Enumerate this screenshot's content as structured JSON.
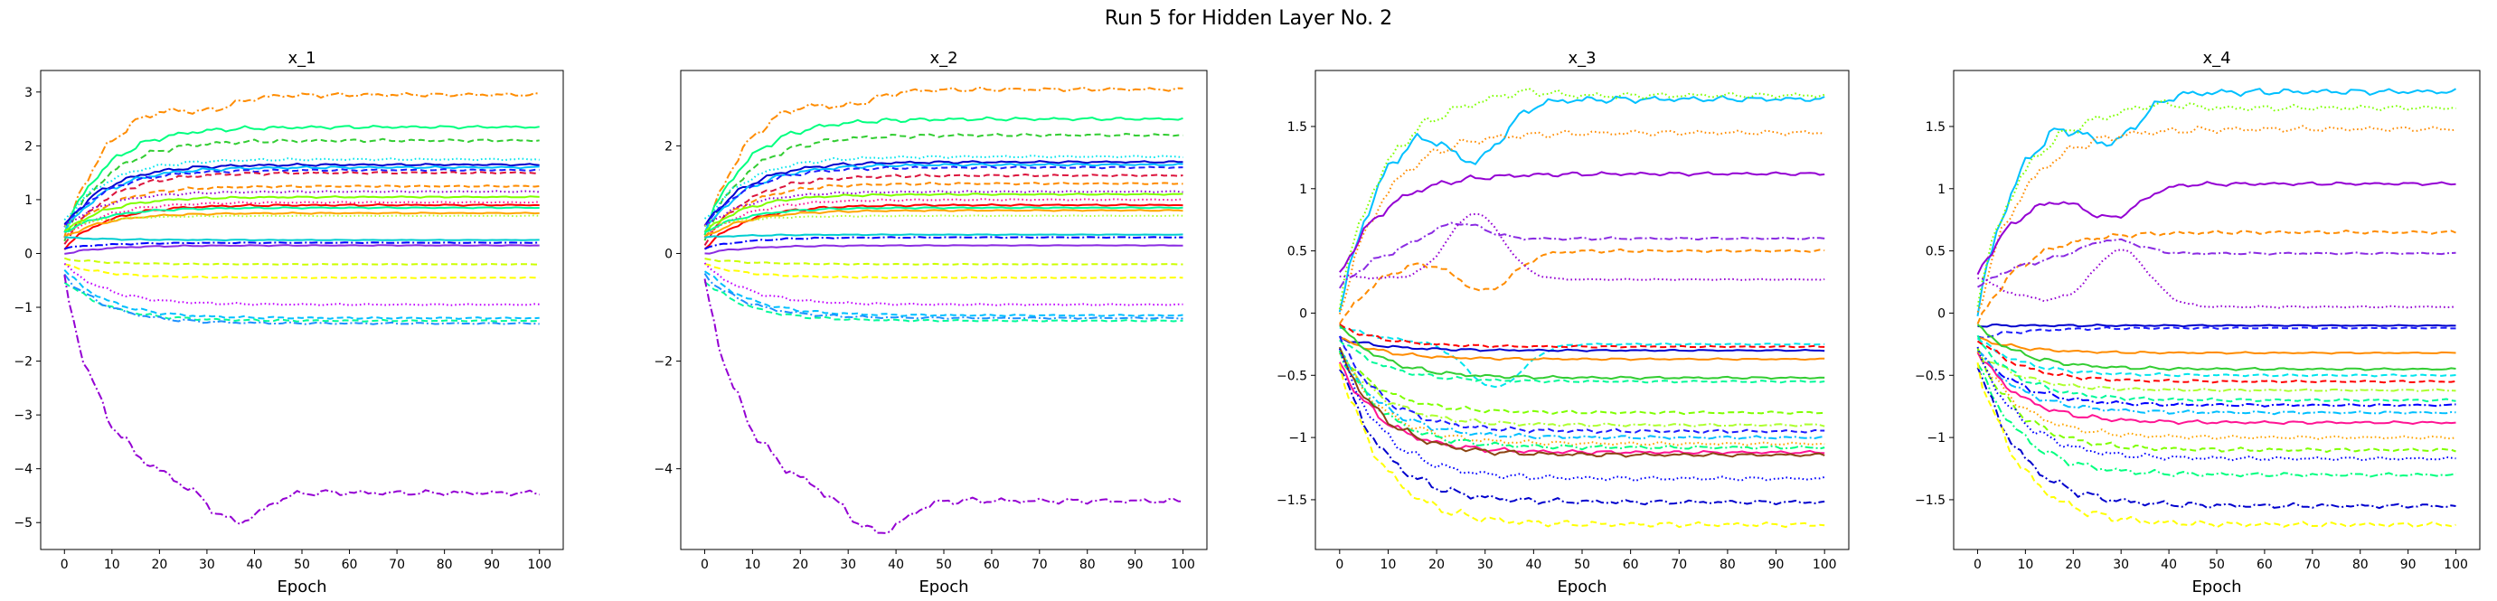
{
  "figure": {
    "title": "Run 5 for Hidden Layer No. 2"
  },
  "chart_data": [
    {
      "type": "line",
      "title": "x_1",
      "xlabel": "Epoch",
      "ylabel": "",
      "xlim": [
        -5,
        105
      ],
      "ylim": [
        -5.5,
        3.4
      ],
      "xticks": [
        0,
        10,
        20,
        30,
        40,
        50,
        60,
        70,
        80,
        90,
        100
      ],
      "yticks": [
        -5,
        -4,
        -3,
        -2,
        -1,
        0,
        1,
        2,
        3
      ],
      "grid": false,
      "legend": "none",
      "series": [
        {
          "color": "#ff8c00",
          "dash": "dashdot",
          "start": 0.3,
          "final": 2.95,
          "bump": 2.75,
          "peak": 30
        },
        {
          "color": "#00ff7f",
          "dash": "solid",
          "start": 0.4,
          "final": 2.35
        },
        {
          "color": "#32cd32",
          "dash": "dashed",
          "start": 0.3,
          "final": 2.1
        },
        {
          "color": "#00e5ee",
          "dash": "dotted",
          "start": 0.6,
          "final": 1.75
        },
        {
          "color": "#0000cd",
          "dash": "solid",
          "start": 0.5,
          "final": 1.65
        },
        {
          "color": "#00bfff",
          "dash": "solid",
          "start": 0.4,
          "final": 1.6
        },
        {
          "color": "#1e1eff",
          "dash": "dashed",
          "start": 0.5,
          "final": 1.55
        },
        {
          "color": "#dc143c",
          "dash": "dashed",
          "start": 0.2,
          "final": 1.5
        },
        {
          "color": "#ff8c00",
          "dash": "dashed",
          "start": 0.3,
          "final": 1.25
        },
        {
          "color": "#9400d3",
          "dash": "dotted",
          "start": 0.5,
          "final": 1.15
        },
        {
          "color": "#7fff00",
          "dash": "solid",
          "start": 0.4,
          "final": 1.05
        },
        {
          "color": "#ff1493",
          "dash": "dotted",
          "start": 0.3,
          "final": 0.95
        },
        {
          "color": "#ff0000",
          "dash": "solid",
          "start": 0.1,
          "final": 0.9
        },
        {
          "color": "#00fa9a",
          "dash": "solid",
          "start": 0.4,
          "final": 0.85
        },
        {
          "color": "#ffa500",
          "dash": "solid",
          "start": 0.3,
          "final": 0.75
        },
        {
          "color": "#adff2f",
          "dash": "dotted",
          "start": 0.5,
          "final": 0.7
        },
        {
          "color": "#00ced1",
          "dash": "solid",
          "start": 0.3,
          "final": 0.25
        },
        {
          "color": "#0000ff",
          "dash": "dashdot",
          "start": 0.1,
          "final": 0.2
        },
        {
          "color": "#8a2be2",
          "dash": "solid",
          "start": 0.0,
          "final": 0.15
        },
        {
          "color": "#ccff00",
          "dash": "dashed",
          "start": -0.1,
          "final": -0.2
        },
        {
          "color": "#ffff00",
          "dash": "dashed",
          "start": -0.2,
          "final": -0.45
        },
        {
          "color": "#c000ff",
          "dash": "dotted",
          "start": -0.2,
          "final": -0.95
        },
        {
          "color": "#00bfff",
          "dash": "dashed",
          "start": -0.3,
          "final": -1.2
        },
        {
          "color": "#00fa9a",
          "dash": "dashed",
          "start": -0.5,
          "final": -1.25
        },
        {
          "color": "#1e90ff",
          "dash": "dashdot",
          "start": -0.4,
          "final": -1.3
        },
        {
          "color": "#9400d3",
          "dash": "dashdot",
          "start": -0.5,
          "final": -4.45,
          "bump": -5.05,
          "peak": 36
        }
      ]
    },
    {
      "type": "line",
      "title": "x_2",
      "xlabel": "Epoch",
      "ylabel": "",
      "xlim": [
        -5,
        105
      ],
      "ylim": [
        -5.5,
        3.4
      ],
      "xticks": [
        0,
        10,
        20,
        30,
        40,
        50,
        60,
        70,
        80,
        90,
        100
      ],
      "yticks": [
        -4,
        -2,
        0,
        2
      ],
      "grid": false,
      "legend": "none",
      "series": [
        {
          "color": "#ff8c00",
          "dash": "dashdot",
          "start": 0.3,
          "final": 3.05,
          "bump": 2.85,
          "peak": 30
        },
        {
          "color": "#00ff7f",
          "dash": "solid",
          "start": 0.4,
          "final": 2.5
        },
        {
          "color": "#32cd32",
          "dash": "dashed",
          "start": 0.3,
          "final": 2.2
        },
        {
          "color": "#00e5ee",
          "dash": "dotted",
          "start": 0.6,
          "final": 1.8
        },
        {
          "color": "#0000cd",
          "dash": "solid",
          "start": 0.5,
          "final": 1.7
        },
        {
          "color": "#00bfff",
          "dash": "solid",
          "start": 0.4,
          "final": 1.65
        },
        {
          "color": "#1e1eff",
          "dash": "dashed",
          "start": 0.5,
          "final": 1.6
        },
        {
          "color": "#dc143c",
          "dash": "dashed",
          "start": 0.2,
          "final": 1.45
        },
        {
          "color": "#ff8c00",
          "dash": "dashed",
          "start": 0.3,
          "final": 1.3
        },
        {
          "color": "#9400d3",
          "dash": "dotted",
          "start": 0.5,
          "final": 1.15
        },
        {
          "color": "#7fff00",
          "dash": "solid",
          "start": 0.4,
          "final": 1.1
        },
        {
          "color": "#ff1493",
          "dash": "dotted",
          "start": 0.3,
          "final": 1.0
        },
        {
          "color": "#ff0000",
          "dash": "solid",
          "start": 0.1,
          "final": 0.9
        },
        {
          "color": "#00fa9a",
          "dash": "solid",
          "start": 0.4,
          "final": 0.85
        },
        {
          "color": "#ffa500",
          "dash": "solid",
          "start": 0.3,
          "final": 0.8
        },
        {
          "color": "#adff2f",
          "dash": "dotted",
          "start": 0.5,
          "final": 0.7
        },
        {
          "color": "#00ced1",
          "dash": "solid",
          "start": 0.3,
          "final": 0.35
        },
        {
          "color": "#0000ff",
          "dash": "dashdot",
          "start": 0.1,
          "final": 0.3
        },
        {
          "color": "#8a2be2",
          "dash": "solid",
          "start": 0.0,
          "final": 0.15
        },
        {
          "color": "#ccff00",
          "dash": "dashed",
          "start": -0.1,
          "final": -0.2
        },
        {
          "color": "#ffff00",
          "dash": "dashed",
          "start": -0.2,
          "final": -0.45
        },
        {
          "color": "#c000ff",
          "dash": "dotted",
          "start": -0.2,
          "final": -0.95
        },
        {
          "color": "#00bfff",
          "dash": "dashed",
          "start": -0.3,
          "final": -1.15
        },
        {
          "color": "#00fa9a",
          "dash": "dashed",
          "start": -0.5,
          "final": -1.25
        },
        {
          "color": "#1e90ff",
          "dash": "dashdot",
          "start": -0.4,
          "final": -1.2
        },
        {
          "color": "#9400d3",
          "dash": "dashdot",
          "start": -0.5,
          "final": -4.6,
          "bump": -5.25,
          "peak": 36
        }
      ]
    },
    {
      "type": "line",
      "title": "x_3",
      "xlabel": "Epoch",
      "ylabel": "",
      "xlim": [
        -5,
        105
      ],
      "ylim": [
        -1.9,
        1.95
      ],
      "xticks": [
        0,
        10,
        20,
        30,
        40,
        50,
        60,
        70,
        80,
        90,
        100
      ],
      "yticks": [
        -1.5,
        -1.0,
        -0.5,
        0.0,
        0.5,
        1.0,
        1.5
      ],
      "grid": false,
      "legend": "none",
      "series": [
        {
          "color": "#00c0ff",
          "dash": "solid",
          "start": 0.0,
          "final": 1.72,
          "bump": 1.3,
          "peak": 28
        },
        {
          "color": "#7fff00",
          "dash": "dotted",
          "start": 0.1,
          "final": 1.75,
          "bump": 1.8,
          "peak": 38
        },
        {
          "color": "#ff8c00",
          "dash": "dotted",
          "start": 0.0,
          "final": 1.45
        },
        {
          "color": "#9400d3",
          "dash": "solid",
          "start": 0.3,
          "final": 1.12
        },
        {
          "color": "#8a2be2",
          "dash": "dashdot",
          "start": 0.2,
          "final": 0.6,
          "bump": 0.75,
          "peak": 24
        },
        {
          "color": "#ff8c00",
          "dash": "dashed",
          "start": -0.1,
          "final": 0.5,
          "bump": 0.2,
          "peak": 30
        },
        {
          "color": "#9400d3",
          "dash": "dotted",
          "start": 0.3,
          "final": 0.27,
          "bump": 0.8,
          "peak": 28
        },
        {
          "color": "#00e5ee",
          "dash": "dashed",
          "start": -0.1,
          "final": -0.25,
          "bump": -0.6,
          "peak": 32
        },
        {
          "color": "#0000cd",
          "dash": "solid",
          "start": -0.2,
          "final": -0.3
        },
        {
          "color": "#ff0000",
          "dash": "dashed",
          "start": -0.1,
          "final": -0.27
        },
        {
          "color": "#ff8c00",
          "dash": "solid",
          "start": -0.2,
          "final": -0.37
        },
        {
          "color": "#32cd32",
          "dash": "solid",
          "start": -0.1,
          "final": -0.52
        },
        {
          "color": "#00fa9a",
          "dash": "dashed",
          "start": -0.2,
          "final": -0.55
        },
        {
          "color": "#7fff00",
          "dash": "dashed",
          "start": -0.3,
          "final": -0.8
        },
        {
          "color": "#adff2f",
          "dash": "dashdot",
          "start": -0.3,
          "final": -0.9
        },
        {
          "color": "#1e1eff",
          "dash": "dashed",
          "start": -0.2,
          "final": -0.95
        },
        {
          "color": "#00bfff",
          "dash": "dashdot",
          "start": -0.3,
          "final": -1.0
        },
        {
          "color": "#ffa500",
          "dash": "dotted",
          "start": -0.3,
          "final": -1.05
        },
        {
          "color": "#00ff7f",
          "dash": "dashdot",
          "start": -0.3,
          "final": -1.08
        },
        {
          "color": "#ff1493",
          "dash": "solid",
          "start": -0.4,
          "final": -1.12
        },
        {
          "color": "#8b4513",
          "dash": "solid",
          "start": -0.3,
          "final": -1.14
        },
        {
          "color": "#0000ff",
          "dash": "dotted",
          "start": -0.3,
          "final": -1.33
        },
        {
          "color": "#0000cd",
          "dash": "dashdot",
          "start": -0.4,
          "final": -1.52
        },
        {
          "color": "#ffff00",
          "dash": "dashed",
          "start": -0.4,
          "final": -1.7
        }
      ]
    },
    {
      "type": "line",
      "title": "x_4",
      "xlabel": "Epoch",
      "ylabel": "",
      "xlim": [
        -5,
        105
      ],
      "ylim": [
        -1.9,
        1.95
      ],
      "xticks": [
        0,
        10,
        20,
        30,
        40,
        50,
        60,
        70,
        80,
        90,
        100
      ],
      "yticks": [
        -1.5,
        -1.0,
        -0.5,
        0.0,
        0.5,
        1.0,
        1.5
      ],
      "grid": false,
      "legend": "none",
      "series": [
        {
          "color": "#00c0ff",
          "dash": "solid",
          "start": 0.0,
          "final": 1.78,
          "bump": 1.45,
          "peak": 28
        },
        {
          "color": "#7fff00",
          "dash": "dotted",
          "start": 0.1,
          "final": 1.65,
          "bump": 1.7,
          "peak": 38
        },
        {
          "color": "#ff8c00",
          "dash": "dotted",
          "start": 0.0,
          "final": 1.48
        },
        {
          "color": "#9400d3",
          "dash": "solid",
          "start": 0.3,
          "final": 1.04,
          "bump": 0.8,
          "peak": 28
        },
        {
          "color": "#ff8c00",
          "dash": "dashed",
          "start": -0.1,
          "final": 0.65
        },
        {
          "color": "#8a2be2",
          "dash": "dashdot",
          "start": 0.2,
          "final": 0.48,
          "bump": 0.6,
          "peak": 28
        },
        {
          "color": "#9400d3",
          "dash": "dotted",
          "start": 0.3,
          "final": 0.05,
          "bump": 0.5,
          "peak": 30
        },
        {
          "color": "#0000cd",
          "dash": "solid",
          "start": -0.1,
          "final": -0.1
        },
        {
          "color": "#1e1eff",
          "dash": "dashed",
          "start": -0.2,
          "final": -0.12
        },
        {
          "color": "#ff8c00",
          "dash": "solid",
          "start": -0.2,
          "final": -0.32
        },
        {
          "color": "#32cd32",
          "dash": "solid",
          "start": -0.1,
          "final": -0.45
        },
        {
          "color": "#00e5ee",
          "dash": "dashed",
          "start": -0.2,
          "final": -0.5
        },
        {
          "color": "#ff0000",
          "dash": "dashed",
          "start": -0.2,
          "final": -0.55
        },
        {
          "color": "#adff2f",
          "dash": "dashdot",
          "start": -0.3,
          "final": -0.62
        },
        {
          "color": "#00fa9a",
          "dash": "dashed",
          "start": -0.2,
          "final": -0.7
        },
        {
          "color": "#0000ff",
          "dash": "dashdot",
          "start": -0.3,
          "final": -0.74
        },
        {
          "color": "#00bfff",
          "dash": "dashdot",
          "start": -0.3,
          "final": -0.8
        },
        {
          "color": "#ff1493",
          "dash": "solid",
          "start": -0.3,
          "final": -0.88
        },
        {
          "color": "#ffa500",
          "dash": "dotted",
          "start": -0.3,
          "final": -1.0
        },
        {
          "color": "#7fff00",
          "dash": "dashed",
          "start": -0.3,
          "final": -1.1
        },
        {
          "color": "#0000ff",
          "dash": "dotted",
          "start": -0.3,
          "final": -1.17
        },
        {
          "color": "#00ff7f",
          "dash": "dashdot",
          "start": -0.4,
          "final": -1.3
        },
        {
          "color": "#0000cd",
          "dash": "dashdot",
          "start": -0.4,
          "final": -1.55
        },
        {
          "color": "#ffff00",
          "dash": "dashed",
          "start": -0.4,
          "final": -1.7
        }
      ]
    }
  ]
}
